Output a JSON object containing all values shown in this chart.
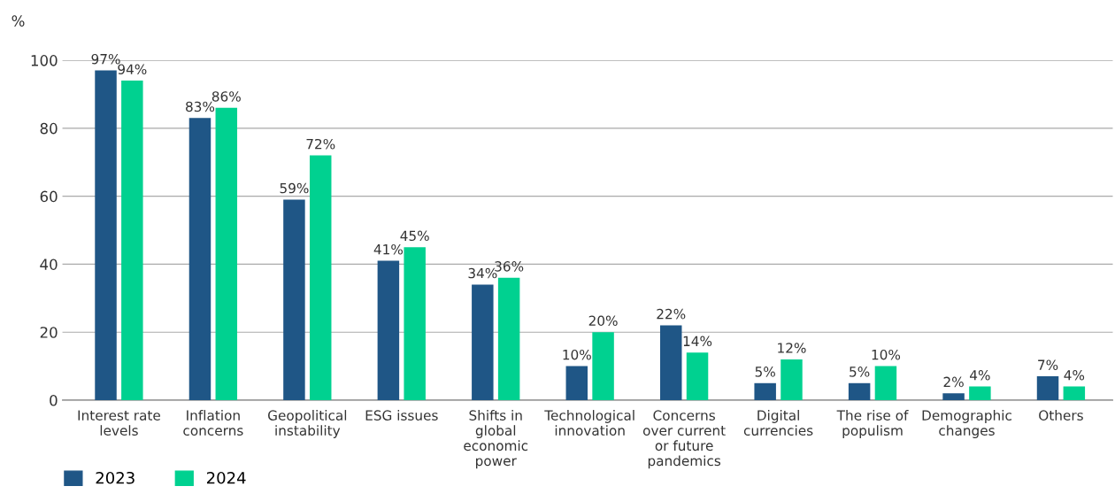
{
  "chart_data": {
    "type": "bar",
    "ylabel": "%",
    "categories": [
      "Interest rate\nlevels",
      "Inflation\nconcerns",
      "Geopolitical\ninstability",
      "ESG issues",
      "Shifts in\nglobal\neconomic\npower",
      "Technological\ninnovation",
      "Concerns\nover current\nor future\npandemics",
      "Digital\ncurrencies",
      "The rise of\npopulism",
      "Demographic\nchanges",
      "Others"
    ],
    "series": [
      {
        "name": "2023",
        "color": "#1f5686",
        "values": [
          97,
          83,
          59,
          41,
          34,
          10,
          22,
          5,
          5,
          2,
          7
        ],
        "value_labels": [
          "97%",
          "83%",
          "59%",
          "41%",
          "34%",
          "10%",
          "22%",
          "5%",
          "5%",
          "2%",
          "7%"
        ]
      },
      {
        "name": "2024",
        "color": "#00d190",
        "values": [
          94,
          86,
          72,
          45,
          36,
          20,
          14,
          12,
          10,
          4,
          4
        ],
        "value_labels": [
          "94%",
          "86%",
          "72%",
          "45%",
          "36%",
          "20%",
          "14%",
          "12%",
          "10%",
          "4%",
          "4%"
        ]
      }
    ],
    "ylim": [
      0,
      100
    ],
    "yticks": [
      0,
      20,
      40,
      60,
      80,
      100
    ],
    "grid": "y",
    "legend": "bottom left"
  }
}
